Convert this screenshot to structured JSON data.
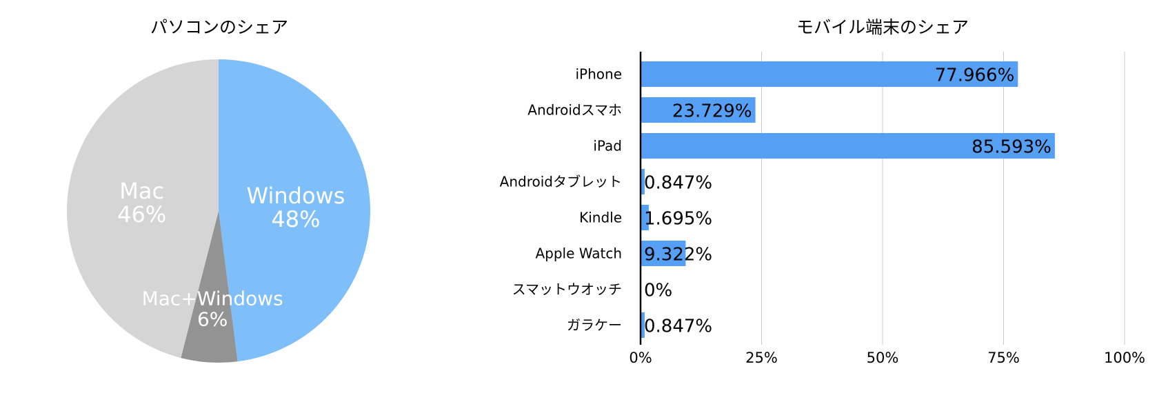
{
  "chart_data": [
    {
      "type": "pie",
      "title": "パソコンのシェア",
      "slices": [
        {
          "label": "Windows",
          "value": 48,
          "display": "48%",
          "color": "#7fbff9"
        },
        {
          "label": "Mac+Windows",
          "value": 6,
          "display": "6%",
          "color": "#939393"
        },
        {
          "label": "Mac",
          "value": 46,
          "display": "46%",
          "color": "#d5d5d5"
        }
      ],
      "start": "top",
      "direction": "clockwise",
      "legend": "none",
      "label_color": "#ffffff"
    },
    {
      "type": "bar",
      "orientation": "horizontal",
      "title": "モバイル端末のシェア",
      "categories": [
        "iPhone",
        "Androidスマホ",
        "iPad",
        "Androidタブレット",
        "Kindle",
        "Apple Watch",
        "スマットウオッチ",
        "ガラケー"
      ],
      "values": [
        77.966,
        23.729,
        85.593,
        0.847,
        1.695,
        9.322,
        0,
        0.847
      ],
      "data_labels": [
        "77.966%",
        "23.729%",
        "85.593%",
        "0.847%",
        "1.695%",
        "9.322%",
        "0%",
        "0.847%"
      ],
      "xlim": [
        0,
        100
      ],
      "xticks": [
        0,
        25,
        50,
        75,
        100
      ],
      "xtick_labels": [
        "0%",
        "25%",
        "50%",
        "75%",
        "100%"
      ],
      "grid": true,
      "bar_color": "#55a0f5",
      "legend": "none"
    }
  ]
}
